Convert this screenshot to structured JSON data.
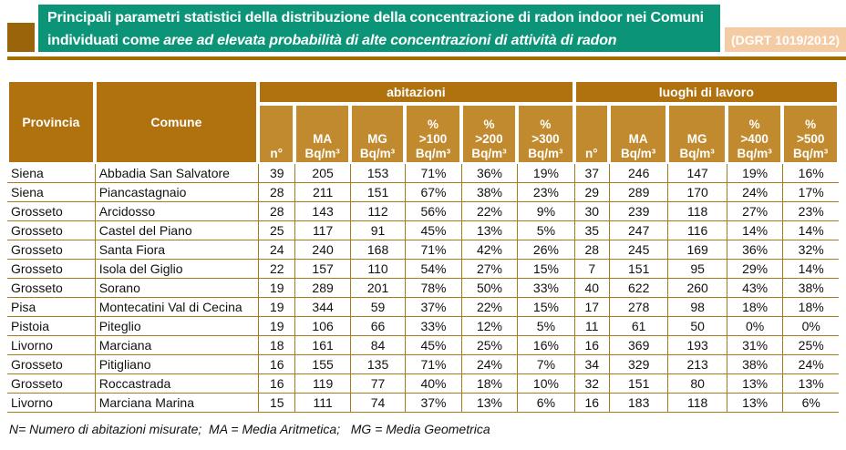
{
  "banner": {
    "title_line1": "Principali parametri statistici della distribuzione della concentrazione di radon indoor nei Comuni",
    "title_line2_regular": "individuati come ",
    "title_line2_italic": "aree ad elevata probabilità di alte concentrazioni di attività di radon",
    "badge": "(DGRT 1019/2012)"
  },
  "colors": {
    "banner_green": "#0b9477",
    "badge_peach": "#f5cba3",
    "square_brown": "#9a650a",
    "rule_gold": "#a06f00",
    "header_dark": "#b0720f",
    "header_light": "#c18a2e",
    "grid_line": "#a87b1e"
  },
  "table": {
    "col_provincia": "Provincia",
    "col_comune": "Comune",
    "group_abitazioni": "abitazioni",
    "group_luoghi": "luoghi di lavoro",
    "subheaders": [
      "n°",
      "MA\nBq/m³",
      "MG\nBq/m³",
      "%\n>100\nBq/m³",
      "%\n>200\nBq/m³",
      "%\n>300\nBq/m³",
      "n°",
      "MA\nBq/m³",
      "MG\nBq/m³",
      "%\n>400\nBq/m³",
      "%\n>500\nBq/m³"
    ],
    "rows": [
      [
        "Siena",
        "Abbadia San Salvatore",
        "39",
        "205",
        "153",
        "71%",
        "36%",
        "19%",
        "37",
        "246",
        "147",
        "19%",
        "16%"
      ],
      [
        "Siena",
        "Piancastagnaio",
        "28",
        "211",
        "151",
        "67%",
        "38%",
        "23%",
        "29",
        "289",
        "170",
        "24%",
        "17%"
      ],
      [
        "Grosseto",
        "Arcidosso",
        "28",
        "143",
        "112",
        "56%",
        "22%",
        "9%",
        "30",
        "239",
        "118",
        "27%",
        "23%"
      ],
      [
        "Grosseto",
        "Castel del Piano",
        "25",
        "117",
        "91",
        "45%",
        "13%",
        "5%",
        "35",
        "247",
        "116",
        "14%",
        "14%"
      ],
      [
        "Grosseto",
        "Santa Fiora",
        "24",
        "240",
        "168",
        "71%",
        "42%",
        "26%",
        "28",
        "245",
        "169",
        "36%",
        "32%"
      ],
      [
        "Grosseto",
        "Isola del Giglio",
        "22",
        "157",
        "110",
        "54%",
        "27%",
        "15%",
        "7",
        "151",
        "95",
        "29%",
        "14%"
      ],
      [
        "Grosseto",
        "Sorano",
        "19",
        "289",
        "201",
        "78%",
        "50%",
        "33%",
        "40",
        "622",
        "260",
        "43%",
        "38%"
      ],
      [
        "Pisa",
        "Montecatini Val di Cecina",
        "19",
        "344",
        "59",
        "37%",
        "22%",
        "15%",
        "17",
        "278",
        "98",
        "18%",
        "18%"
      ],
      [
        "Pistoia",
        "Piteglio",
        "19",
        "106",
        "66",
        "33%",
        "12%",
        "5%",
        "11",
        "61",
        "50",
        "0%",
        "0%"
      ],
      [
        "Livorno",
        "Marciana",
        "18",
        "161",
        "84",
        "45%",
        "25%",
        "16%",
        "16",
        "369",
        "193",
        "31%",
        "25%"
      ],
      [
        "Grosseto",
        "Pitigliano",
        "16",
        "155",
        "135",
        "71%",
        "24%",
        "7%",
        "34",
        "329",
        "213",
        "38%",
        "24%"
      ],
      [
        "Grosseto",
        "Roccastrada",
        "16",
        "119",
        "77",
        "40%",
        "18%",
        "10%",
        "32",
        "151",
        "80",
        "13%",
        "13%"
      ],
      [
        "Livorno",
        "Marciana Marina",
        "15",
        "111",
        "74",
        "37%",
        "13%",
        "6%",
        "16",
        "183",
        "118",
        "13%",
        "6%"
      ]
    ]
  },
  "footnote": "N= Numero di abitazioni misurate;  MA = Media Aritmetica;   MG = Media Geometrica"
}
